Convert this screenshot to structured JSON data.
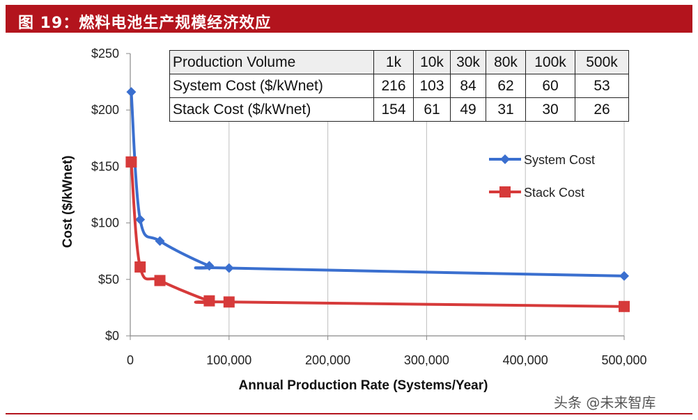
{
  "banner": {
    "title": "图 19：燃料电池生产规模经济效应"
  },
  "watermark": "头条 @未来智库",
  "table": {
    "header_label": "Production Volume",
    "columns": [
      "1k",
      "10k",
      "30k",
      "80k",
      "100k",
      "500k"
    ],
    "rows": [
      {
        "label": "System Cost ($/kWnet)",
        "values": [
          "216",
          "103",
          "84",
          "62",
          "60",
          "53"
        ]
      },
      {
        "label": "Stack Cost ($/kWnet)",
        "values": [
          "154",
          "61",
          "49",
          "31",
          "30",
          "26"
        ]
      }
    ]
  },
  "chart_data": {
    "type": "line",
    "title": "",
    "xlabel": "Annual Production Rate (Systems/Year)",
    "ylabel": "Cost ($/kWnet)",
    "xlim": [
      0,
      500000
    ],
    "ylim": [
      0,
      250
    ],
    "xticks": [
      0,
      100000,
      200000,
      300000,
      400000,
      500000
    ],
    "xtick_labels": [
      "0",
      "100,000",
      "200,000",
      "300,000",
      "400,000",
      "500,000"
    ],
    "yticks": [
      0,
      50,
      100,
      150,
      200,
      250
    ],
    "ytick_labels": [
      "$0",
      "$50",
      "$100",
      "$150",
      "$200",
      "$250"
    ],
    "grid": "vertical",
    "legend_position": "right",
    "series": [
      {
        "name": "System Cost",
        "color": "#3a6fcf",
        "marker": "diamond",
        "x": [
          1000,
          10000,
          30000,
          80000,
          100000,
          500000
        ],
        "y": [
          216,
          103,
          84,
          62,
          60,
          53
        ]
      },
      {
        "name": "Stack Cost",
        "color": "#d63a3a",
        "marker": "square",
        "x": [
          1000,
          10000,
          30000,
          80000,
          100000,
          500000
        ],
        "y": [
          154,
          61,
          49,
          31,
          30,
          26
        ]
      }
    ]
  }
}
